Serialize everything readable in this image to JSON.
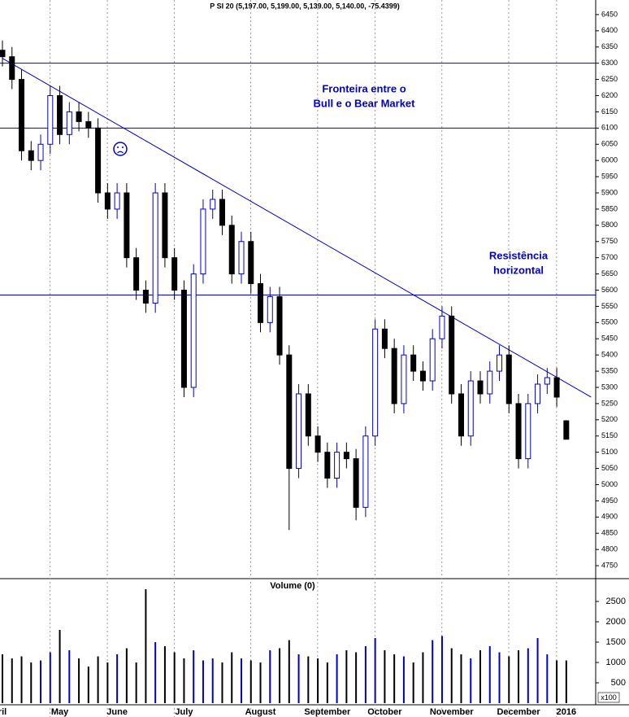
{
  "chart_data": {
    "type": "candlestick",
    "title": "P SI 20 (5,197.00, 5,199.00, 5,139.00, 5,140.00, -75.4399)",
    "categories": [
      "ril",
      null,
      null,
      null,
      null,
      null,
      "May",
      null,
      null,
      null,
      null,
      null,
      "June",
      null,
      null,
      null,
      null,
      null,
      null,
      "July",
      null,
      null,
      null,
      null,
      null,
      null,
      null,
      "August",
      null,
      null,
      null,
      null,
      null,
      null,
      "September",
      null,
      null,
      null,
      null,
      null,
      "October",
      null,
      null,
      null,
      null,
      null,
      null,
      "November",
      null,
      null,
      null,
      null,
      null,
      null,
      "December",
      null,
      null,
      null,
      null,
      "2016"
    ],
    "opens": [
      6340,
      6320,
      6250,
      6030,
      6000,
      6050,
      6200,
      6080,
      6150,
      6120,
      6100,
      5900,
      5850,
      5900,
      5700,
      5600,
      5560,
      5900,
      5700,
      5600,
      5300,
      5650,
      5850,
      5880,
      5800,
      5650,
      5750,
      5620,
      5500,
      5580,
      5400,
      5050,
      5280,
      5150,
      5100,
      5020,
      5100,
      5080,
      4930,
      5150,
      5480,
      5420,
      5250,
      5400,
      5350,
      5320,
      5450,
      5520,
      5280,
      5150,
      5320,
      5280,
      5350,
      5400,
      5250,
      5080,
      5250,
      5310,
      5330,
      5197
    ],
    "highs": [
      6370,
      6350,
      6280,
      6060,
      6080,
      6230,
      6230,
      6180,
      6180,
      6150,
      6130,
      5930,
      5930,
      5930,
      5730,
      5630,
      5930,
      5930,
      5730,
      5630,
      5680,
      5880,
      5910,
      5910,
      5830,
      5780,
      5780,
      5650,
      5610,
      5610,
      5430,
      5310,
      5310,
      5180,
      5130,
      5130,
      5130,
      5110,
      5180,
      5510,
      5510,
      5450,
      5430,
      5430,
      5380,
      5480,
      5550,
      5550,
      5310,
      5350,
      5350,
      5380,
      5430,
      5430,
      5280,
      5280,
      5340,
      5360,
      5360,
      5199
    ],
    "lows": [
      6290,
      6220,
      6000,
      5970,
      5970,
      6020,
      6050,
      6050,
      6090,
      6070,
      5870,
      5820,
      5820,
      5670,
      5570,
      5530,
      5530,
      5670,
      5570,
      5270,
      5270,
      5620,
      5820,
      5770,
      5620,
      5620,
      5590,
      5470,
      5470,
      5370,
      4860,
      5020,
      5120,
      5070,
      4990,
      4990,
      5050,
      4890,
      4900,
      5120,
      5390,
      5220,
      5220,
      5320,
      5290,
      5290,
      5420,
      5250,
      5120,
      5120,
      5250,
      5250,
      5320,
      5220,
      5050,
      5050,
      5220,
      5280,
      5240,
      5139
    ],
    "closes": [
      6320,
      6250,
      6030,
      6000,
      6050,
      6200,
      6080,
      6150,
      6120,
      6100,
      5900,
      5850,
      5900,
      5700,
      5600,
      5560,
      5900,
      5700,
      5600,
      5300,
      5650,
      5850,
      5880,
      5800,
      5650,
      5750,
      5620,
      5500,
      5580,
      5400,
      5050,
      5280,
      5150,
      5100,
      5020,
      5100,
      5080,
      4930,
      5150,
      5480,
      5420,
      5250,
      5400,
      5350,
      5320,
      5450,
      5520,
      5280,
      5150,
      5320,
      5280,
      5350,
      5400,
      5250,
      5080,
      5250,
      5310,
      5330,
      5270,
      5140
    ],
    "ylim": [
      4710,
      6495
    ],
    "yticks": [
      4750,
      4800,
      4850,
      4900,
      4950,
      5000,
      5050,
      5100,
      5150,
      5200,
      5250,
      5300,
      5350,
      5400,
      5450,
      5500,
      5550,
      5600,
      5650,
      5700,
      5750,
      5800,
      5850,
      5900,
      5950,
      6000,
      6050,
      6100,
      6150,
      6200,
      6250,
      6300,
      6350,
      6400,
      6450
    ],
    "hlines": [
      6300,
      6100,
      5585
    ],
    "trendline": {
      "x": [
        0,
        61.6
      ],
      "y": [
        6315,
        5270
      ]
    },
    "annotations": [
      [
        "Fronteira entre o",
        "Bull e o Bear Market"
      ],
      [
        "Resistência",
        "horizontal"
      ]
    ],
    "volume": {
      "title": "Volume (0)",
      "unit_label": "x100",
      "values": [
        1200,
        1100,
        1150,
        1000,
        1050,
        1250,
        1800,
        1300,
        1100,
        900,
        1150,
        1000,
        1200,
        1350,
        1000,
        2800,
        1500,
        1400,
        1250,
        1100,
        1300,
        1050,
        1100,
        1000,
        1250,
        1100,
        1050,
        1000,
        1300,
        1350,
        1550,
        1200,
        1150,
        1100,
        1000,
        1200,
        1300,
        1250,
        1400,
        1600,
        1300,
        1200,
        1150,
        1000,
        1250,
        1550,
        1650,
        1350,
        1200,
        1100,
        1300,
        1400,
        1250,
        1150,
        1300,
        1350,
        1600,
        1200,
        1050,
        1050
      ],
      "ylim": [
        0,
        3060
      ],
      "yticks": [
        500,
        1000,
        1500,
        2000,
        2500
      ]
    }
  }
}
